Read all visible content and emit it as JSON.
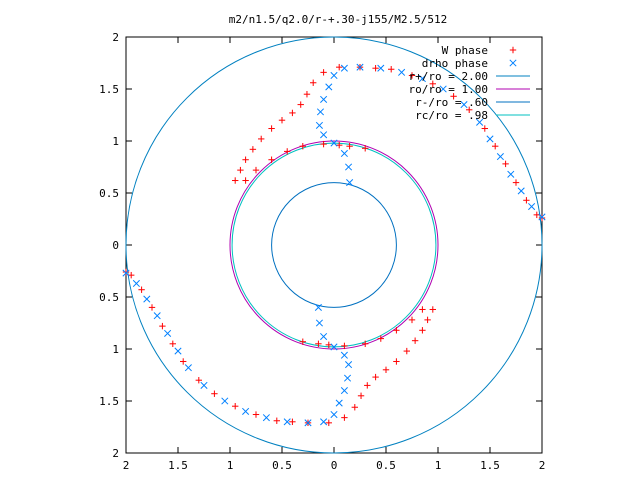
{
  "chart_data": {
    "type": "scatter",
    "title": "m2/n1.5/q2.0/r-+.30-j155/M2.5/512",
    "xlabel": "",
    "ylabel": "",
    "xlim": [
      -2,
      2
    ],
    "ylim": [
      -2,
      2
    ],
    "x_ticks": [
      -2,
      -1.5,
      -1,
      -0.5,
      0,
      0.5,
      1,
      1.5,
      2
    ],
    "y_ticks": [
      -2,
      -1.5,
      -1,
      -0.5,
      0,
      0.5,
      1,
      1.5,
      2
    ],
    "x_tick_labels": [
      "2",
      "1.5",
      "1",
      "0.5",
      "0",
      "0.5",
      "1",
      "1.5",
      "2"
    ],
    "y_tick_labels": [
      "2",
      "1.5",
      "1",
      "0.5",
      "0",
      "0.5",
      "1",
      "1.5",
      "2"
    ],
    "grid": false,
    "legend_position": "top-right",
    "series": [
      {
        "name": "W phase",
        "marker": "plus",
        "color": "#ff0000",
        "points": [
          [
            -0.95,
            0.62
          ],
          [
            -0.9,
            0.72
          ],
          [
            -0.85,
            0.82
          ],
          [
            -0.78,
            0.92
          ],
          [
            -0.7,
            1.02
          ],
          [
            -0.6,
            1.12
          ],
          [
            -0.5,
            1.2
          ],
          [
            -0.4,
            1.27
          ],
          [
            -0.32,
            1.35
          ],
          [
            -0.26,
            1.45
          ],
          [
            -0.2,
            1.56
          ],
          [
            -0.1,
            1.66
          ],
          [
            0.05,
            1.71
          ],
          [
            0.25,
            1.71
          ],
          [
            0.4,
            1.7
          ],
          [
            0.55,
            1.69
          ],
          [
            0.75,
            1.63
          ],
          [
            0.95,
            1.55
          ],
          [
            1.15,
            1.43
          ],
          [
            1.3,
            1.3
          ],
          [
            1.45,
            1.12
          ],
          [
            1.55,
            0.95
          ],
          [
            1.65,
            0.78
          ],
          [
            1.75,
            0.6
          ],
          [
            1.85,
            0.43
          ],
          [
            1.95,
            0.29
          ],
          [
            2.0,
            0.26
          ],
          [
            -0.85,
            0.62
          ],
          [
            -0.75,
            0.72
          ],
          [
            -0.6,
            0.82
          ],
          [
            -0.45,
            0.9
          ],
          [
            -0.3,
            0.95
          ],
          [
            -0.1,
            0.97
          ],
          [
            0.05,
            0.96
          ],
          [
            0.15,
            0.95
          ],
          [
            0.3,
            0.93
          ],
          [
            0.95,
            -0.62
          ],
          [
            0.9,
            -0.72
          ],
          [
            0.85,
            -0.82
          ],
          [
            0.78,
            -0.92
          ],
          [
            0.7,
            -1.02
          ],
          [
            0.6,
            -1.12
          ],
          [
            0.5,
            -1.2
          ],
          [
            0.4,
            -1.27
          ],
          [
            0.32,
            -1.35
          ],
          [
            0.26,
            -1.45
          ],
          [
            0.2,
            -1.56
          ],
          [
            0.1,
            -1.66
          ],
          [
            -0.05,
            -1.71
          ],
          [
            -0.25,
            -1.71
          ],
          [
            -0.4,
            -1.7
          ],
          [
            -0.55,
            -1.69
          ],
          [
            -0.75,
            -1.63
          ],
          [
            -0.95,
            -1.55
          ],
          [
            -1.15,
            -1.43
          ],
          [
            -1.3,
            -1.3
          ],
          [
            -1.45,
            -1.12
          ],
          [
            -1.55,
            -0.95
          ],
          [
            -1.65,
            -0.78
          ],
          [
            -1.75,
            -0.6
          ],
          [
            -1.85,
            -0.43
          ],
          [
            -1.95,
            -0.29
          ],
          [
            -2.0,
            -0.26
          ],
          [
            0.85,
            -0.62
          ],
          [
            0.75,
            -0.72
          ],
          [
            0.6,
            -0.82
          ],
          [
            0.45,
            -0.9
          ],
          [
            0.3,
            -0.95
          ],
          [
            0.1,
            -0.97
          ],
          [
            -0.05,
            -0.96
          ],
          [
            -0.15,
            -0.95
          ],
          [
            -0.3,
            -0.93
          ]
        ]
      },
      {
        "name": "drho phase",
        "marker": "cross",
        "color": "#0080ff",
        "points": [
          [
            0.15,
            0.6
          ],
          [
            0.14,
            0.75
          ],
          [
            0.1,
            0.88
          ],
          [
            0.0,
            0.98
          ],
          [
            -0.1,
            1.06
          ],
          [
            -0.14,
            1.15
          ],
          [
            -0.13,
            1.28
          ],
          [
            -0.1,
            1.4
          ],
          [
            -0.05,
            1.52
          ],
          [
            0.0,
            1.63
          ],
          [
            0.1,
            1.7
          ],
          [
            0.25,
            1.71
          ],
          [
            0.45,
            1.7
          ],
          [
            0.65,
            1.66
          ],
          [
            0.85,
            1.6
          ],
          [
            1.05,
            1.5
          ],
          [
            1.25,
            1.35
          ],
          [
            1.4,
            1.18
          ],
          [
            1.5,
            1.02
          ],
          [
            1.6,
            0.85
          ],
          [
            1.7,
            0.68
          ],
          [
            1.8,
            0.52
          ],
          [
            1.9,
            0.37
          ],
          [
            2.0,
            0.27
          ],
          [
            -0.15,
            -0.6
          ],
          [
            -0.14,
            -0.75
          ],
          [
            -0.1,
            -0.88
          ],
          [
            0.0,
            -0.98
          ],
          [
            0.1,
            -1.06
          ],
          [
            0.14,
            -1.15
          ],
          [
            0.13,
            -1.28
          ],
          [
            0.1,
            -1.4
          ],
          [
            0.05,
            -1.52
          ],
          [
            0.0,
            -1.63
          ],
          [
            -0.1,
            -1.7
          ],
          [
            -0.25,
            -1.71
          ],
          [
            -0.45,
            -1.7
          ],
          [
            -0.65,
            -1.66
          ],
          [
            -0.85,
            -1.6
          ],
          [
            -1.05,
            -1.5
          ],
          [
            -1.25,
            -1.35
          ],
          [
            -1.4,
            -1.18
          ],
          [
            -1.5,
            -1.02
          ],
          [
            -1.6,
            -0.85
          ],
          [
            -1.7,
            -0.68
          ],
          [
            -1.8,
            -0.52
          ],
          [
            -1.9,
            -0.37
          ],
          [
            -2.0,
            -0.27
          ]
        ]
      }
    ],
    "circles": [
      {
        "name": "r+/ro = 2.00",
        "radius": 2.0,
        "color": "#0080c0"
      },
      {
        "name": "ro/ro = 1.00",
        "radius": 1.0,
        "color": "#b000b0"
      },
      {
        "name": "r-/ro = .60",
        "radius": 0.6,
        "color": "#0070c0"
      },
      {
        "name": "rc/ro = .98",
        "radius": 0.98,
        "color": "#00c0c0"
      }
    ]
  }
}
